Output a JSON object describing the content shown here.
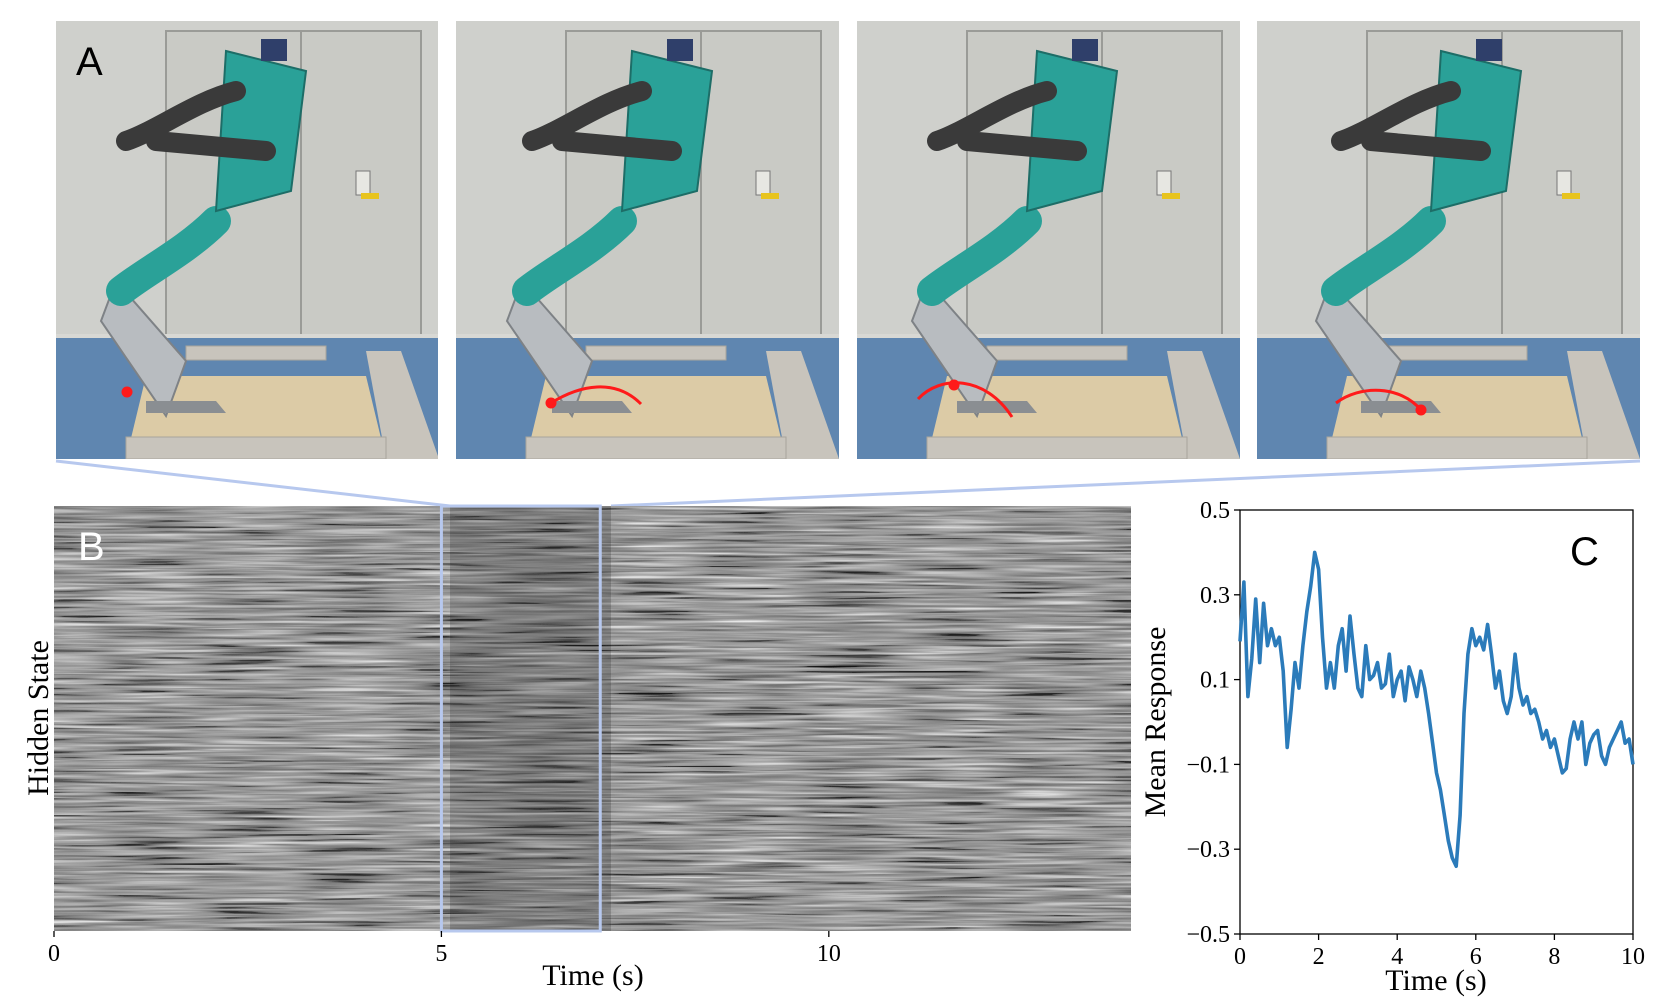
{
  "panels": {
    "a": {
      "label": "A",
      "frames": [
        {
          "foot_trajectory": "none"
        },
        {
          "foot_trajectory": "swing-start"
        },
        {
          "foot_trajectory": "mid-swing"
        },
        {
          "foot_trajectory": "swing-end"
        }
      ],
      "colors": {
        "robot_torso": "#2aa198",
        "robot_arm": "#3a3a3a",
        "robot_leg": "#b8bcc0",
        "wall": "#cfd0cc",
        "door": "#c9cac5",
        "floor": "#5f86b0",
        "platform": "#dccba6",
        "bricks": "#c8c4bc",
        "trajectory": "#ff1a1a"
      }
    },
    "b": {
      "label": "B",
      "highlight_color": "#b7c8ee"
    },
    "c": {
      "label": "C",
      "line_color": "#2b7bba"
    }
  },
  "chart_data": [
    {
      "type": "heatmap",
      "panel": "B",
      "title": "",
      "xlabel": "Time (s)",
      "ylabel": "Hidden State",
      "xlim": [
        0,
        13.9
      ],
      "x_ticks": [
        0,
        5,
        10
      ],
      "x_tick_labels": [
        "0",
        "5",
        "10"
      ],
      "colormap": "grayscale",
      "highlight_window": [
        5.0,
        7.05
      ]
    },
    {
      "type": "line",
      "panel": "C",
      "title": "",
      "xlabel": "Time (s)",
      "ylabel": "Mean Response",
      "xlim": [
        0,
        10
      ],
      "ylim": [
        -0.5,
        0.5
      ],
      "x_ticks": [
        0,
        2,
        4,
        6,
        8,
        10
      ],
      "x_tick_labels": [
        "0",
        "2",
        "4",
        "6",
        "8",
        "10"
      ],
      "y_ticks": [
        0.5,
        0.3,
        0.1,
        -0.1,
        -0.3,
        -0.5
      ],
      "y_tick_labels": [
        "0.5",
        "0.3",
        "0.1",
        "−0.1",
        "−0.3",
        "−0.5"
      ],
      "grid": false,
      "x": [
        0.0,
        0.1,
        0.2,
        0.3,
        0.4,
        0.5,
        0.6,
        0.7,
        0.8,
        0.9,
        1.0,
        1.1,
        1.2,
        1.3,
        1.4,
        1.5,
        1.6,
        1.7,
        1.8,
        1.9,
        2.0,
        2.1,
        2.2,
        2.3,
        2.4,
        2.5,
        2.6,
        2.7,
        2.8,
        2.9,
        3.0,
        3.1,
        3.2,
        3.3,
        3.4,
        3.5,
        3.6,
        3.7,
        3.8,
        3.9,
        4.0,
        4.1,
        4.2,
        4.3,
        4.4,
        4.5,
        4.6,
        4.7,
        4.8,
        4.9,
        5.0,
        5.1,
        5.2,
        5.3,
        5.4,
        5.5,
        5.6,
        5.7,
        5.8,
        5.9,
        6.0,
        6.1,
        6.2,
        6.3,
        6.4,
        6.5,
        6.6,
        6.7,
        6.8,
        6.9,
        7.0,
        7.1,
        7.2,
        7.3,
        7.4,
        7.5,
        7.6,
        7.7,
        7.8,
        7.9,
        8.0,
        8.1,
        8.2,
        8.3,
        8.4,
        8.5,
        8.6,
        8.7,
        8.8,
        8.9,
        9.0,
        9.1,
        9.2,
        9.3,
        9.4,
        9.5,
        9.6,
        9.7,
        9.8,
        9.9,
        10.0
      ],
      "series": [
        {
          "values": [
            0.19,
            0.33,
            0.06,
            0.15,
            0.29,
            0.14,
            0.28,
            0.18,
            0.22,
            0.18,
            0.2,
            0.12,
            -0.06,
            0.03,
            0.14,
            0.08,
            0.18,
            0.26,
            0.32,
            0.4,
            0.36,
            0.2,
            0.08,
            0.14,
            0.08,
            0.18,
            0.22,
            0.12,
            0.25,
            0.16,
            0.08,
            0.06,
            0.18,
            0.1,
            0.11,
            0.14,
            0.08,
            0.09,
            0.16,
            0.06,
            0.1,
            0.12,
            0.05,
            0.13,
            0.1,
            0.06,
            0.12,
            0.08,
            0.02,
            -0.05,
            -0.12,
            -0.16,
            -0.22,
            -0.28,
            -0.32,
            -0.34,
            -0.22,
            0.02,
            0.16,
            0.22,
            0.18,
            0.2,
            0.17,
            0.23,
            0.16,
            0.08,
            0.12,
            0.05,
            0.02,
            0.06,
            0.16,
            0.08,
            0.04,
            0.06,
            0.02,
            0.03,
            0.0,
            -0.04,
            -0.02,
            -0.06,
            -0.04,
            -0.08,
            -0.12,
            -0.11,
            -0.04,
            0.0,
            -0.04,
            0.0,
            -0.1,
            -0.05,
            -0.03,
            -0.02,
            -0.08,
            -0.1,
            -0.06,
            -0.04,
            -0.02,
            0.0,
            -0.05,
            -0.04,
            -0.1
          ]
        }
      ]
    }
  ]
}
